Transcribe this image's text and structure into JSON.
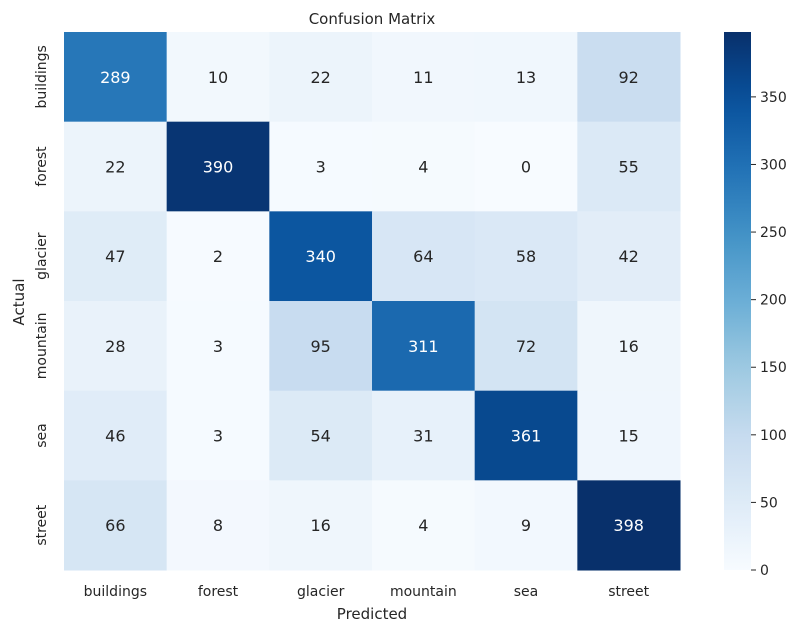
{
  "chart_data": {
    "type": "heatmap",
    "title": "Confusion Matrix",
    "xlabel": "Predicted",
    "ylabel": "Actual",
    "x_categories": [
      "buildings",
      "forest",
      "glacier",
      "mountain",
      "sea",
      "street"
    ],
    "y_categories": [
      "buildings",
      "forest",
      "glacier",
      "mountain",
      "sea",
      "street"
    ],
    "values": [
      [
        289,
        10,
        22,
        11,
        13,
        92
      ],
      [
        22,
        390,
        3,
        4,
        0,
        55
      ],
      [
        47,
        2,
        340,
        64,
        58,
        42
      ],
      [
        28,
        3,
        95,
        311,
        72,
        16
      ],
      [
        46,
        3,
        54,
        31,
        361,
        15
      ],
      [
        66,
        8,
        16,
        4,
        9,
        398
      ]
    ],
    "colorbar": {
      "colormap": "Blues",
      "vmin": 0,
      "vmax": 398,
      "ticks": [
        0,
        50,
        100,
        150,
        200,
        250,
        300,
        350
      ]
    }
  }
}
